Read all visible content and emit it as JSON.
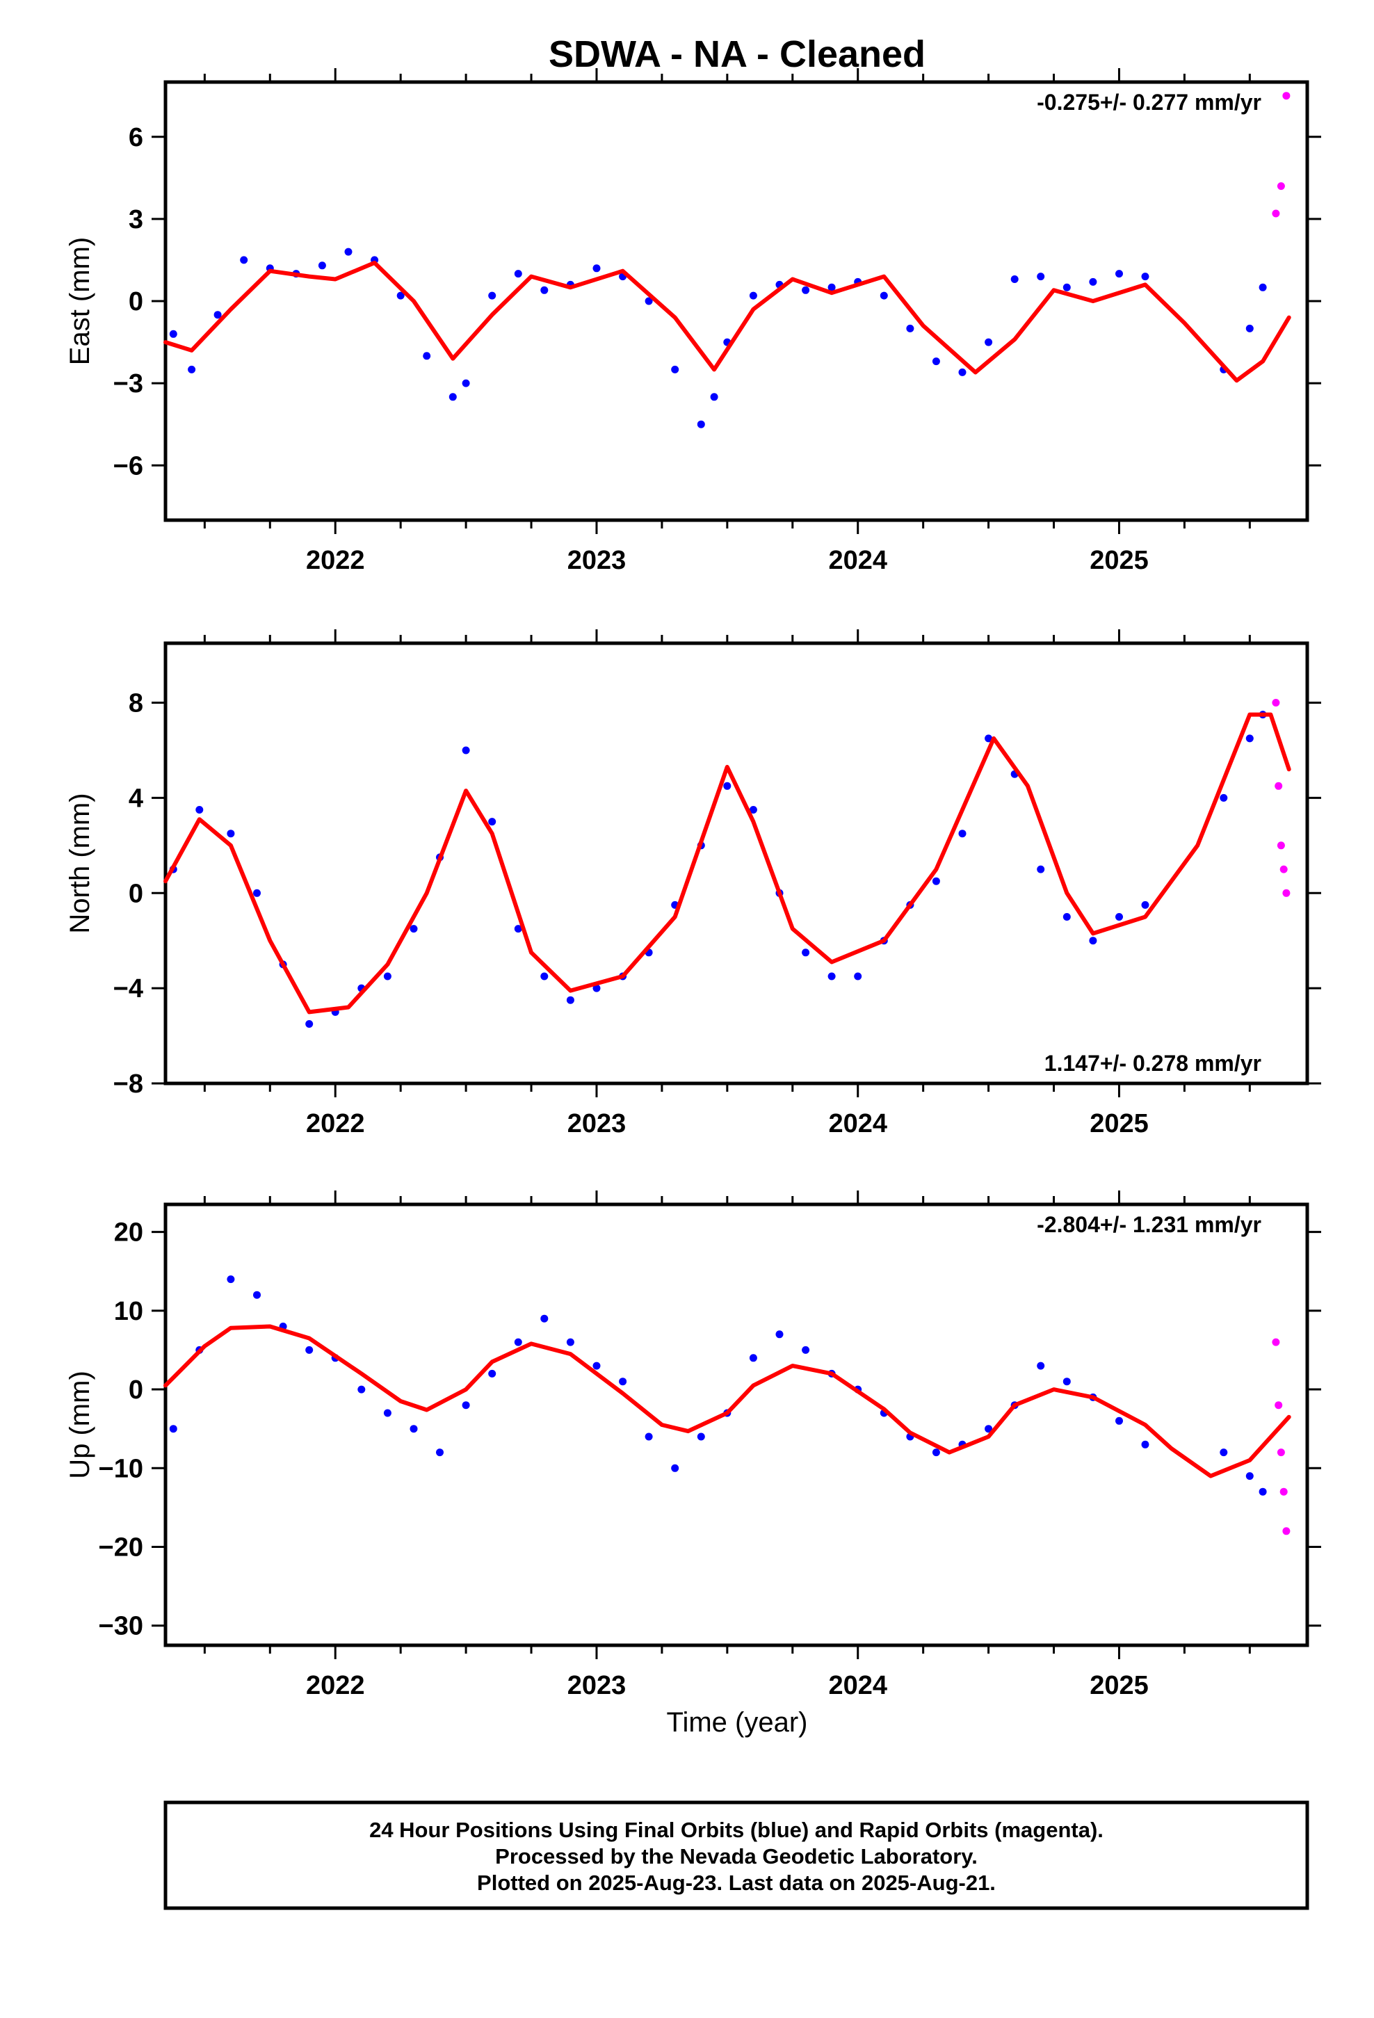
{
  "title": "SDWA  - NA - Cleaned",
  "xlabel": "Time (year)",
  "footer": {
    "line1": "24 Hour Positions Using Final Orbits (blue) and Rapid Orbits (magenta).",
    "line2": "Processed by the Nevada Geodetic Laboratory.",
    "line3": "Plotted on 2025-Aug-23. Last data on 2025-Aug-21."
  },
  "colors": {
    "final": "#0000ff",
    "rapid": "#ff00ff",
    "model": "#ff0000",
    "frame": "#000000"
  },
  "chart_data": [
    {
      "type": "scatter",
      "panel": "east",
      "ylabel": "East (mm)",
      "rate_label": "-0.275+/- 0.277 mm/yr",
      "rate_position": "top-right",
      "xlim": [
        2021.35,
        2025.72
      ],
      "ylim": [
        -8,
        8
      ],
      "xticks": [
        "2022",
        "2023",
        "2024",
        "2025"
      ],
      "yticks": [
        "6",
        "3",
        "0",
        "−3",
        "−6"
      ],
      "yticks_values": [
        6,
        3,
        0,
        -3,
        -6
      ],
      "series": [
        {
          "name": "Final Orbits",
          "role": "final",
          "x": [
            2021.38,
            2021.45,
            2021.55,
            2021.65,
            2021.75,
            2021.85,
            2021.95,
            2022.05,
            2022.15,
            2022.25,
            2022.35,
            2022.45,
            2022.5,
            2022.6,
            2022.7,
            2022.8,
            2022.9,
            2023.0,
            2023.1,
            2023.2,
            2023.3,
            2023.4,
            2023.45,
            2023.5,
            2023.6,
            2023.7,
            2023.8,
            2023.9,
            2024.0,
            2024.1,
            2024.2,
            2024.3,
            2024.4,
            2024.5,
            2024.6,
            2024.7,
            2024.8,
            2024.9,
            2025.0,
            2025.1,
            2025.4,
            2025.5,
            2025.55
          ],
          "y": [
            -1.2,
            -2.5,
            -0.5,
            1.5,
            1.2,
            1.0,
            1.3,
            1.8,
            1.5,
            0.2,
            -2.0,
            -3.5,
            -3.0,
            0.2,
            1.0,
            0.4,
            0.6,
            1.2,
            0.9,
            0.0,
            -2.5,
            -4.5,
            -3.5,
            -1.5,
            0.2,
            0.6,
            0.4,
            0.5,
            0.7,
            0.2,
            -1.0,
            -2.2,
            -2.6,
            -1.5,
            0.8,
            0.9,
            0.5,
            0.7,
            1.0,
            0.9,
            -2.5,
            -1.0,
            0.5
          ]
        },
        {
          "name": "Rapid Orbits",
          "role": "rapid",
          "x": [
            2025.6,
            2025.62,
            2025.64
          ],
          "y": [
            3.2,
            4.2,
            7.5
          ]
        },
        {
          "name": "Model",
          "role": "model",
          "x": [
            2021.35,
            2021.45,
            2021.6,
            2021.75,
            2021.9,
            2022.0,
            2022.15,
            2022.3,
            2022.45,
            2022.6,
            2022.75,
            2022.9,
            2023.1,
            2023.3,
            2023.45,
            2023.6,
            2023.75,
            2023.9,
            2024.1,
            2024.25,
            2024.45,
            2024.6,
            2024.75,
            2024.9,
            2025.1,
            2025.25,
            2025.45,
            2025.55,
            2025.65
          ],
          "y": [
            -1.5,
            -1.8,
            -0.3,
            1.1,
            0.9,
            0.8,
            1.4,
            0.0,
            -2.1,
            -0.5,
            0.9,
            0.5,
            1.1,
            -0.6,
            -2.5,
            -0.3,
            0.8,
            0.3,
            0.9,
            -0.9,
            -2.6,
            -1.4,
            0.4,
            0.0,
            0.6,
            -0.8,
            -2.9,
            -2.2,
            -0.6
          ]
        }
      ]
    },
    {
      "type": "scatter",
      "panel": "north",
      "ylabel": "North (mm)",
      "rate_label": "1.147+/- 0.278 mm/yr",
      "rate_position": "bottom-right",
      "xlim": [
        2021.35,
        2025.72
      ],
      "ylim": [
        -8,
        10.5
      ],
      "xticks": [
        "2022",
        "2023",
        "2024",
        "2025"
      ],
      "yticks": [
        "8",
        "4",
        "0",
        "−4",
        "−8"
      ],
      "yticks_values": [
        8,
        4,
        0,
        -4,
        -8
      ],
      "series": [
        {
          "name": "Final Orbits",
          "role": "final",
          "x": [
            2021.38,
            2021.48,
            2021.6,
            2021.7,
            2021.8,
            2021.9,
            2022.0,
            2022.1,
            2022.2,
            2022.3,
            2022.4,
            2022.5,
            2022.6,
            2022.7,
            2022.8,
            2022.9,
            2023.0,
            2023.1,
            2023.2,
            2023.3,
            2023.4,
            2023.5,
            2023.6,
            2023.7,
            2023.8,
            2023.9,
            2024.0,
            2024.1,
            2024.2,
            2024.3,
            2024.4,
            2024.5,
            2024.6,
            2024.7,
            2024.8,
            2024.9,
            2025.0,
            2025.1,
            2025.4,
            2025.5,
            2025.55
          ],
          "y": [
            1.0,
            3.5,
            2.5,
            0.0,
            -3.0,
            -5.5,
            -5.0,
            -4.0,
            -3.5,
            -1.5,
            1.5,
            6.0,
            3.0,
            -1.5,
            -3.5,
            -4.5,
            -4.0,
            -3.5,
            -2.5,
            -0.5,
            2.0,
            4.5,
            3.5,
            0.0,
            -2.5,
            -3.5,
            -3.5,
            -2.0,
            -0.5,
            0.5,
            2.5,
            6.5,
            5.0,
            1.0,
            -1.0,
            -2.0,
            -1.0,
            -0.5,
            4.0,
            6.5,
            7.5
          ]
        },
        {
          "name": "Rapid Orbits",
          "role": "rapid",
          "x": [
            2025.6,
            2025.61,
            2025.62,
            2025.63,
            2025.64
          ],
          "y": [
            8.0,
            4.5,
            2.0,
            1.0,
            0.0
          ]
        },
        {
          "name": "Model",
          "role": "model",
          "x": [
            2021.35,
            2021.48,
            2021.6,
            2021.75,
            2021.9,
            2022.05,
            2022.2,
            2022.35,
            2022.5,
            2022.6,
            2022.75,
            2022.9,
            2023.1,
            2023.3,
            2023.5,
            2023.6,
            2023.75,
            2023.9,
            2024.1,
            2024.3,
            2024.52,
            2024.65,
            2024.8,
            2024.9,
            2025.1,
            2025.3,
            2025.5,
            2025.58,
            2025.65
          ],
          "y": [
            0.5,
            3.1,
            2.0,
            -2.0,
            -5.0,
            -4.8,
            -3.0,
            0.0,
            4.3,
            2.5,
            -2.5,
            -4.1,
            -3.5,
            -1.0,
            5.3,
            3.0,
            -1.5,
            -2.9,
            -2.0,
            1.0,
            6.5,
            4.5,
            0.0,
            -1.7,
            -1.0,
            2.0,
            7.5,
            7.5,
            5.2
          ]
        }
      ]
    },
    {
      "type": "scatter",
      "panel": "up",
      "ylabel": "Up (mm)",
      "rate_label": "-2.804+/- 1.231 mm/yr",
      "rate_position": "top-right",
      "xlim": [
        2021.35,
        2025.72
      ],
      "ylim": [
        -32.5,
        23.5
      ],
      "xticks": [
        "2022",
        "2023",
        "2024",
        "2025"
      ],
      "yticks": [
        "20",
        "10",
        "0",
        "−10",
        "−20",
        "−30"
      ],
      "yticks_values": [
        20,
        10,
        0,
        -10,
        -20,
        -30
      ],
      "series": [
        {
          "name": "Final Orbits",
          "role": "final",
          "x": [
            2021.38,
            2021.48,
            2021.6,
            2021.7,
            2021.8,
            2021.9,
            2022.0,
            2022.1,
            2022.2,
            2022.3,
            2022.4,
            2022.5,
            2022.6,
            2022.7,
            2022.8,
            2022.9,
            2023.0,
            2023.1,
            2023.2,
            2023.3,
            2023.4,
            2023.5,
            2023.6,
            2023.7,
            2023.8,
            2023.9,
            2024.0,
            2024.1,
            2024.2,
            2024.3,
            2024.4,
            2024.5,
            2024.6,
            2024.7,
            2024.8,
            2024.9,
            2025.0,
            2025.1,
            2025.4,
            2025.5,
            2025.55
          ],
          "y": [
            -5.0,
            5.0,
            14.0,
            12.0,
            8.0,
            5.0,
            4.0,
            0.0,
            -3.0,
            -5.0,
            -8.0,
            -2.0,
            2.0,
            6.0,
            9.0,
            6.0,
            3.0,
            1.0,
            -6.0,
            -10.0,
            -6.0,
            -3.0,
            4.0,
            7.0,
            5.0,
            2.0,
            0.0,
            -3.0,
            -6.0,
            -8.0,
            -7.0,
            -5.0,
            -2.0,
            3.0,
            1.0,
            -1.0,
            -4.0,
            -7.0,
            -8.0,
            -11.0,
            -13.0
          ]
        },
        {
          "name": "Rapid Orbits",
          "role": "rapid",
          "x": [
            2025.6,
            2025.61,
            2025.62,
            2025.63,
            2025.64
          ],
          "y": [
            6.0,
            -2.0,
            -8.0,
            -13.0,
            -18.0
          ]
        },
        {
          "name": "Model",
          "role": "model",
          "x": [
            2021.35,
            2021.5,
            2021.6,
            2021.75,
            2021.9,
            2022.1,
            2022.25,
            2022.35,
            2022.5,
            2022.6,
            2022.75,
            2022.9,
            2023.1,
            2023.25,
            2023.35,
            2023.5,
            2023.6,
            2023.75,
            2023.9,
            2024.1,
            2024.2,
            2024.35,
            2024.5,
            2024.6,
            2024.75,
            2024.9,
            2025.1,
            2025.2,
            2025.35,
            2025.5,
            2025.65
          ],
          "y": [
            0.5,
            5.5,
            7.8,
            8.0,
            6.5,
            2.0,
            -1.5,
            -2.6,
            0.0,
            3.5,
            5.8,
            4.5,
            -0.5,
            -4.5,
            -5.3,
            -3.0,
            0.5,
            3.0,
            2.0,
            -2.5,
            -5.5,
            -8.0,
            -6.0,
            -2.0,
            0.0,
            -1.0,
            -4.5,
            -7.5,
            -11.0,
            -9.0,
            -3.5
          ]
        }
      ]
    }
  ]
}
